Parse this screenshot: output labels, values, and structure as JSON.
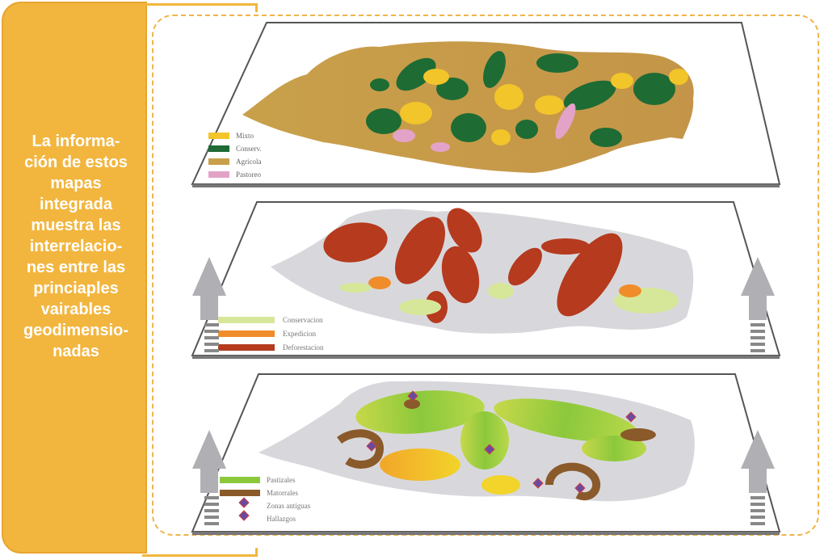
{
  "side_panel": {
    "text": "La informa-\nción de estos\nmapas\nintegrada\nmuestra las\ninterrelacio-\nnes entre las\nprinciaples\nvairables\ngeodimensio-\nnadas",
    "background": "#f2b63f"
  },
  "colors": {
    "frame_dash": "#f0b44a",
    "arrow": "#a8a8a8",
    "land_gray": "#d8d8dc"
  },
  "layers": [
    {
      "legend": [
        {
          "label": "Mixto",
          "color": "#f2c52a"
        },
        {
          "label": "Conserv.",
          "color": "#1e6b34"
        },
        {
          "label": "Agrícola",
          "color": "#c9a04a"
        },
        {
          "label": "Pastoreo",
          "color": "#e3a3c8"
        }
      ]
    },
    {
      "legend": [
        {
          "label": "Conservacion",
          "color": "#d7e79a"
        },
        {
          "label": "Expedicion",
          "color": "#f08d2a"
        },
        {
          "label": "Deforestacion",
          "color": "#b53a1e"
        }
      ]
    },
    {
      "legend": [
        {
          "label": "Pastizales",
          "color": "#8cc83c"
        },
        {
          "label": "Matorrales",
          "color": "#8a5a2a"
        },
        {
          "label": "Zonas antiguas",
          "color": "#6a4aa0"
        },
        {
          "label": "Hallazgos",
          "color": "#6a4aa0"
        }
      ]
    }
  ]
}
